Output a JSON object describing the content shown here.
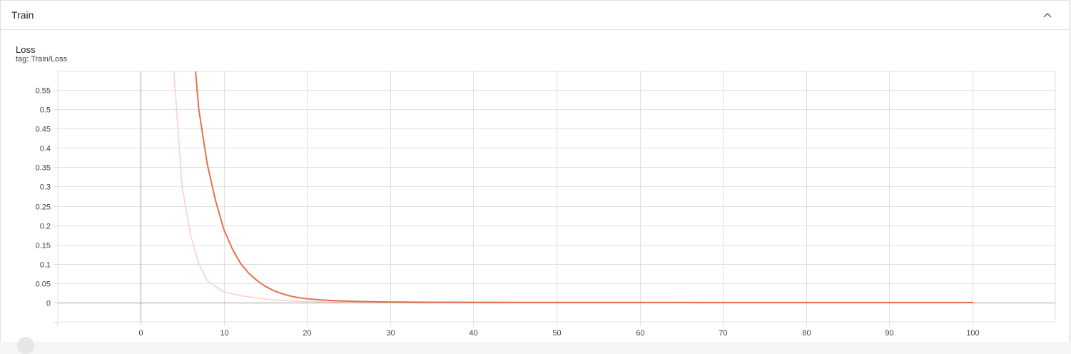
{
  "section": {
    "title": "Train"
  },
  "card": {
    "title": "Loss",
    "tag": "tag: Train/Loss"
  },
  "colors": {
    "smoothed": "#e8714b",
    "raw": "#f9d4c6",
    "grid": "#e0e0e0",
    "zero_axis": "#9e9e9e"
  },
  "chart_data": {
    "type": "line",
    "title": "Loss",
    "subtitle": "tag: Train/Loss",
    "xlabel": "",
    "ylabel": "",
    "grid": true,
    "xlim": [
      -10,
      102
    ],
    "ylim": [
      -0.05,
      0.6
    ],
    "x_ticks": [
      0,
      10,
      20,
      30,
      40,
      50,
      60,
      70,
      80,
      90,
      100
    ],
    "y_ticks": [
      0,
      0.05,
      0.1,
      0.15,
      0.2,
      0.25,
      0.3,
      0.35,
      0.4,
      0.45,
      0.5,
      0.55
    ],
    "y_tick_labels": [
      "0",
      "0.05",
      "0.1",
      "0.15",
      "0.2",
      "0.25",
      "0.3",
      "0.35",
      "0.4",
      "0.45",
      "0.5",
      "0.55"
    ],
    "series": [
      {
        "role": "raw",
        "x": [
          4,
          5,
          6,
          7,
          8,
          9,
          10,
          12,
          14,
          16,
          18,
          20,
          25,
          30,
          40,
          50,
          60,
          70,
          80,
          90,
          100
        ],
        "values": [
          0.6,
          0.3,
          0.175,
          0.1,
          0.057,
          0.042,
          0.028,
          0.018,
          0.012,
          0.007,
          0.004,
          0.003,
          0.001,
          0.0005,
          0.0003,
          0.0002,
          0.0001,
          0.0001,
          0.0001,
          0.0001,
          0.0001
        ]
      },
      {
        "role": "smoothed",
        "x": [
          6,
          7,
          8,
          9,
          10,
          11,
          12,
          13,
          14,
          15,
          16,
          17,
          18,
          19,
          20,
          22,
          24,
          26,
          28,
          30,
          35,
          40,
          50,
          60,
          70,
          80,
          90,
          100
        ],
        "values": [
          0.75,
          0.5,
          0.36,
          0.265,
          0.19,
          0.14,
          0.102,
          0.076,
          0.057,
          0.042,
          0.031,
          0.023,
          0.017,
          0.013,
          0.01,
          0.0065,
          0.0045,
          0.003,
          0.0022,
          0.0016,
          0.001,
          0.0007,
          0.0004,
          0.0003,
          0.0002,
          0.0002,
          0.0001,
          0.0001
        ]
      }
    ]
  }
}
